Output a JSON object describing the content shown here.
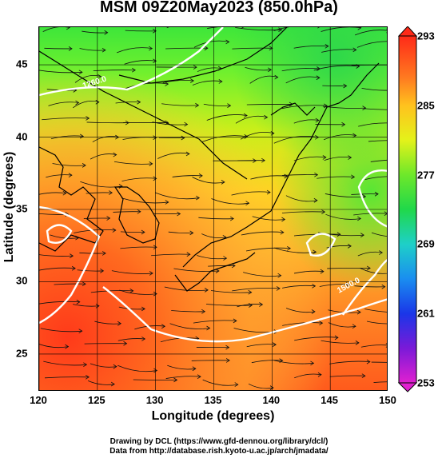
{
  "title": "MSM 09Z20May2023 (850.0hPa)",
  "axes": {
    "xlabel": "Longitude (degrees)",
    "ylabel": "Latitude  (degrees)",
    "xticks": [
      "120",
      "125",
      "130",
      "135",
      "140",
      "145",
      "150"
    ],
    "yticks": [
      "25",
      "30",
      "35",
      "40",
      "45"
    ]
  },
  "colorbar": {
    "ticks": [
      "293",
      "285",
      "277",
      "269",
      "261",
      "253"
    ]
  },
  "contour_labels": [
    "1260.0",
    "1500.0"
  ],
  "credits": {
    "line1": "Drawing by DCL (https://www.gfd-dennou.org/library/dcl/)",
    "line2": "Data from http://database.rish.kyoto-u.ac.jp/arch/jmadata/"
  },
  "chart_data": {
    "type": "heatmap",
    "title": "MSM 09Z20May2023 (850.0hPa)",
    "xlabel": "Longitude (degrees)",
    "ylabel": "Latitude  (degrees)",
    "xlim": [
      120,
      150
    ],
    "ylim": [
      22.4,
      47.6
    ],
    "colorbar_range": [
      253,
      293
    ],
    "colorbar_ticks": [
      293,
      285,
      277,
      269,
      261,
      253
    ],
    "grid": true,
    "field": "temperature (K) with wind streamlines and white geopotential height contours"
  }
}
